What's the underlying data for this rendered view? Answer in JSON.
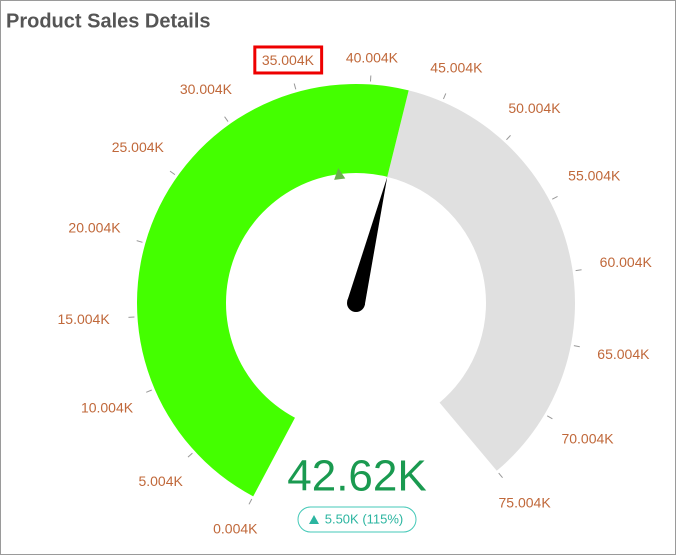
{
  "chart_data": {
    "type": "gauge",
    "title": "Product Sales Details",
    "ylim": [
      0.004,
      75.004
    ],
    "yticks": [
      {
        "value": 0.004,
        "label": "0.004K"
      },
      {
        "value": 5.004,
        "label": "5.004K"
      },
      {
        "value": 10.004,
        "label": "10.004K"
      },
      {
        "value": 15.004,
        "label": "15.004K"
      },
      {
        "value": 20.004,
        "label": "20.004K"
      },
      {
        "value": 25.004,
        "label": "25.004K"
      },
      {
        "value": 30.004,
        "label": "30.004K"
      },
      {
        "value": 35.004,
        "label": "35.004K"
      },
      {
        "value": 40.004,
        "label": "40.004K"
      },
      {
        "value": 45.004,
        "label": "45.004K"
      },
      {
        "value": 50.004,
        "label": "50.004K"
      },
      {
        "value": 55.004,
        "label": "55.004K"
      },
      {
        "value": 60.004,
        "label": "60.004K"
      },
      {
        "value": 65.004,
        "label": "65.004K"
      },
      {
        "value": 70.004,
        "label": "70.004K"
      },
      {
        "value": 75.004,
        "label": "75.004K"
      }
    ],
    "value": 42.62,
    "value_label": "42.62K",
    "target": 37.12,
    "delta_text": "5.50K (115%)",
    "color": "#44ff00",
    "track_color": "#e0e0e0",
    "target_color": "#6ab04c"
  }
}
